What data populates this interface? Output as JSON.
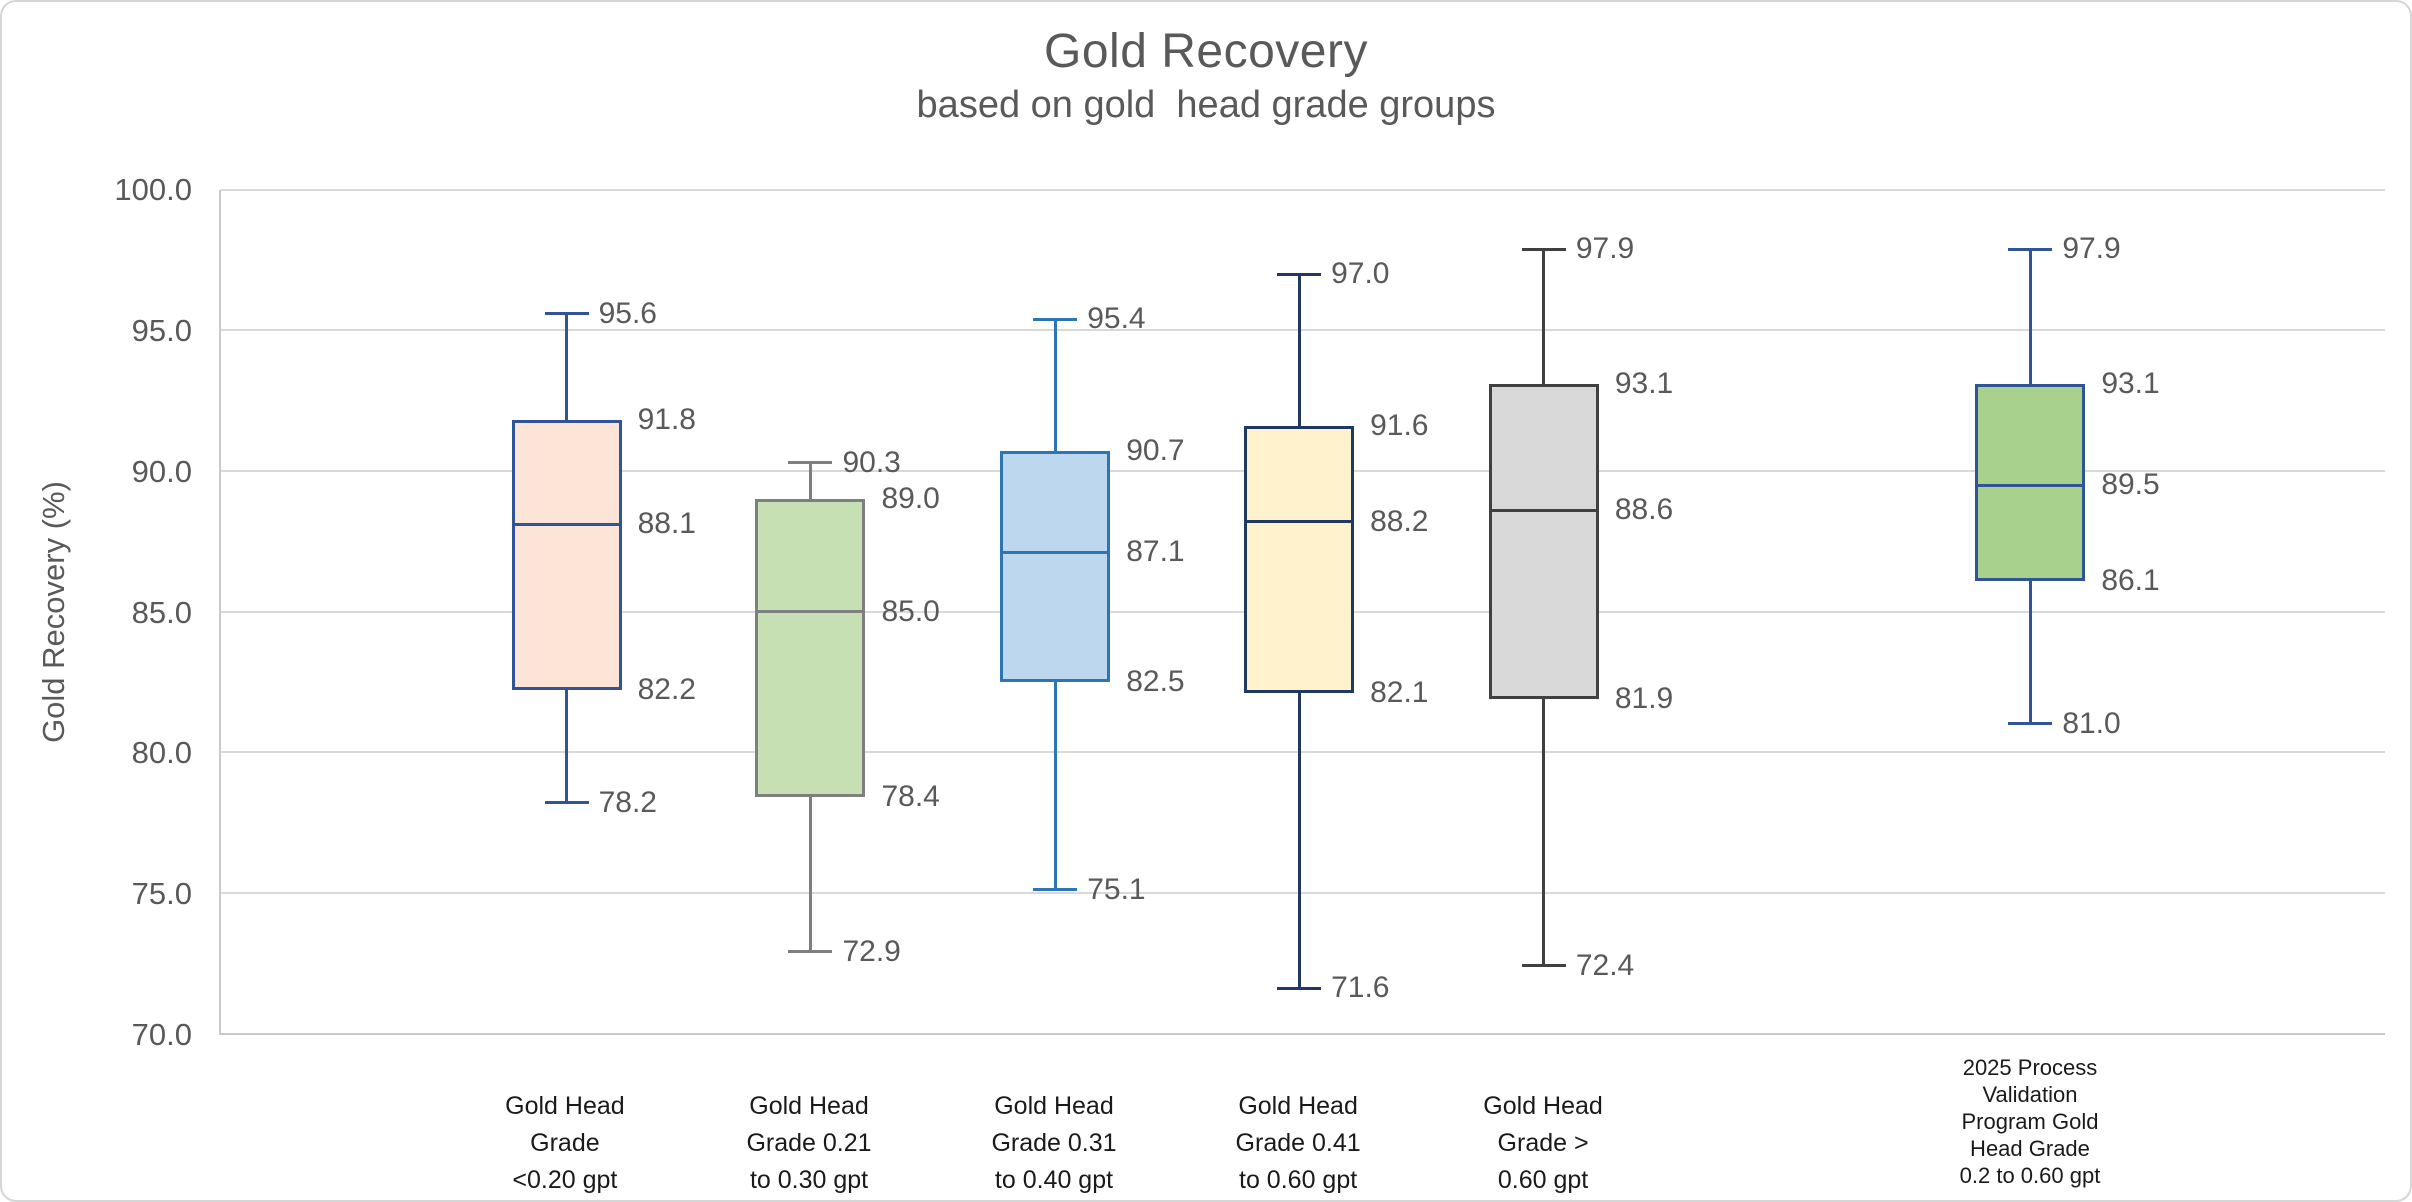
{
  "chart_data": {
    "type": "boxplot",
    "title": "Gold Recovery",
    "subtitle": "based on gold  head grade groups",
    "ylabel": "Gold Recovery (%)",
    "ylim": [
      70.0,
      100.0
    ],
    "ytick_step": 5.0,
    "ytick_labels": [
      "100.0",
      "95.0",
      "90.0",
      "85.0",
      "80.0",
      "75.0",
      "70.0"
    ],
    "grid": "horizontal",
    "legend": "none",
    "label_decimals": 1,
    "series": [
      {
        "category_lines": [
          "Gold Head",
          "Grade",
          "<0.20 gpt"
        ],
        "min": 78.2,
        "q1": 82.2,
        "median": 88.1,
        "q3": 91.8,
        "max": 95.6,
        "fill": "#FCE4D6",
        "stroke": "#305496",
        "center_pct": 15.97
      },
      {
        "category_lines": [
          "Gold Head",
          "Grade 0.21",
          "to 0.30 gpt"
        ],
        "min": 72.9,
        "q1": 78.4,
        "median": 85.0,
        "q3": 89.0,
        "max": 90.3,
        "fill": "#C6E0B4",
        "stroke": "#7F7F7F",
        "center_pct": 27.24
      },
      {
        "category_lines": [
          "Gold Head",
          "Grade 0.31",
          "to 0.40 gpt"
        ],
        "min": 75.1,
        "q1": 82.5,
        "median": 87.1,
        "q3": 90.7,
        "max": 95.4,
        "fill": "#BDD7EE",
        "stroke": "#2E75B6",
        "center_pct": 38.55
      },
      {
        "category_lines": [
          "Gold Head",
          "Grade 0.41",
          "to 0.60 gpt"
        ],
        "min": 71.6,
        "q1": 82.1,
        "median": 88.2,
        "q3": 91.6,
        "max": 97.0,
        "fill": "#FFF2CC",
        "stroke": "#1F3864",
        "center_pct": 49.82
      },
      {
        "category_lines": [
          "Gold Head",
          "Grade >",
          "0.60 gpt"
        ],
        "min": 72.4,
        "q1": 81.9,
        "median": 88.6,
        "q3": 93.1,
        "max": 97.9,
        "fill": "#D9D9D9",
        "stroke": "#404040",
        "center_pct": 61.13
      },
      {
        "category_lines": [
          "2025 Process",
          "Validation",
          "Program Gold",
          "Head Grade",
          "0.2 to 0.60 gpt"
        ],
        "min": 81.0,
        "q1": 86.1,
        "median": 89.5,
        "q3": 93.1,
        "max": 97.9,
        "fill": "#A9D18E",
        "stroke": "#305496",
        "center_pct": 83.61
      }
    ]
  },
  "colors": {
    "gridline": "#D9D9D9",
    "axis_text": "#595959",
    "title_text": "#595959",
    "category_text": "#1A1A1A",
    "chart_border": "#D6D6D6"
  }
}
